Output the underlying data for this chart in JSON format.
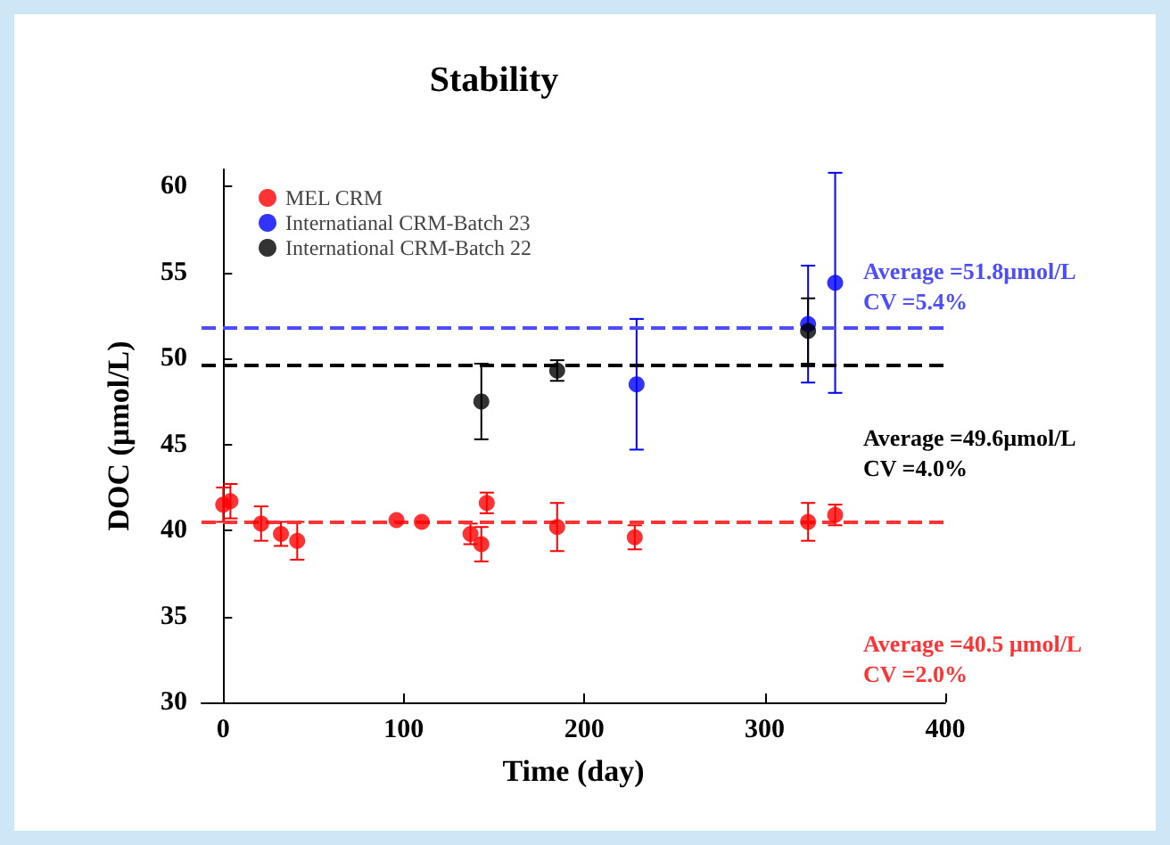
{
  "chart_data": {
    "type": "scatter",
    "title": "Stability",
    "xlabel": "Time (day)",
    "ylabel": "DOC (µmol/L)",
    "xlim": [
      -12,
      400
    ],
    "xticks": [
      0,
      100,
      200,
      300,
      400
    ],
    "ylim": [
      30,
      61
    ],
    "yticks": [
      30,
      35,
      40,
      45,
      50,
      55,
      60
    ],
    "grid": false,
    "legend": "top left",
    "marker": "circle",
    "series": [
      {
        "name": "MEL CRM",
        "color": "#ff0000",
        "x": [
          0,
          4,
          21,
          32,
          41,
          96,
          110,
          137,
          143,
          146,
          185,
          228,
          324,
          339
        ],
        "values": [
          41.5,
          41.7,
          40.4,
          39.8,
          39.4,
          40.6,
          40.5,
          39.8,
          39.2,
          41.6,
          40.2,
          39.6,
          40.5,
          40.9
        ],
        "errors": [
          1.0,
          1.0,
          1.0,
          0.7,
          1.1,
          null,
          null,
          0.6,
          1.0,
          0.6,
          1.4,
          0.7,
          1.1,
          0.6
        ]
      },
      {
        "name": "Internatianal CRM-Batch 23",
        "color": "#0000ff",
        "x": [
          229,
          324,
          339
        ],
        "values": [
          48.5,
          52.0,
          54.4
        ],
        "errors": [
          3.8,
          3.4,
          6.4
        ]
      },
      {
        "name": "International CRM-Batch 22",
        "color": "#000000",
        "x": [
          143,
          185,
          324
        ],
        "values": [
          47.5,
          49.3,
          51.6
        ],
        "errors": [
          2.2,
          0.6,
          1.9
        ]
      }
    ],
    "ref_lines": [
      {
        "axis": "y",
        "value": 51.8,
        "label": "Average =51.8µmol/L\nCV =5.4%",
        "color": "#4d4dff",
        "line_style": "dashed"
      },
      {
        "axis": "y",
        "value": 49.6,
        "label": "Average =49.6µmol/L\nCV =4.0%",
        "color": "#000000",
        "line_style": "dashed"
      },
      {
        "axis": "y",
        "value": 40.5,
        "label": "Average =40.5 µmol/L\nCV =2.0%",
        "color": "#ff3333",
        "line_style": "dashed"
      }
    ]
  }
}
